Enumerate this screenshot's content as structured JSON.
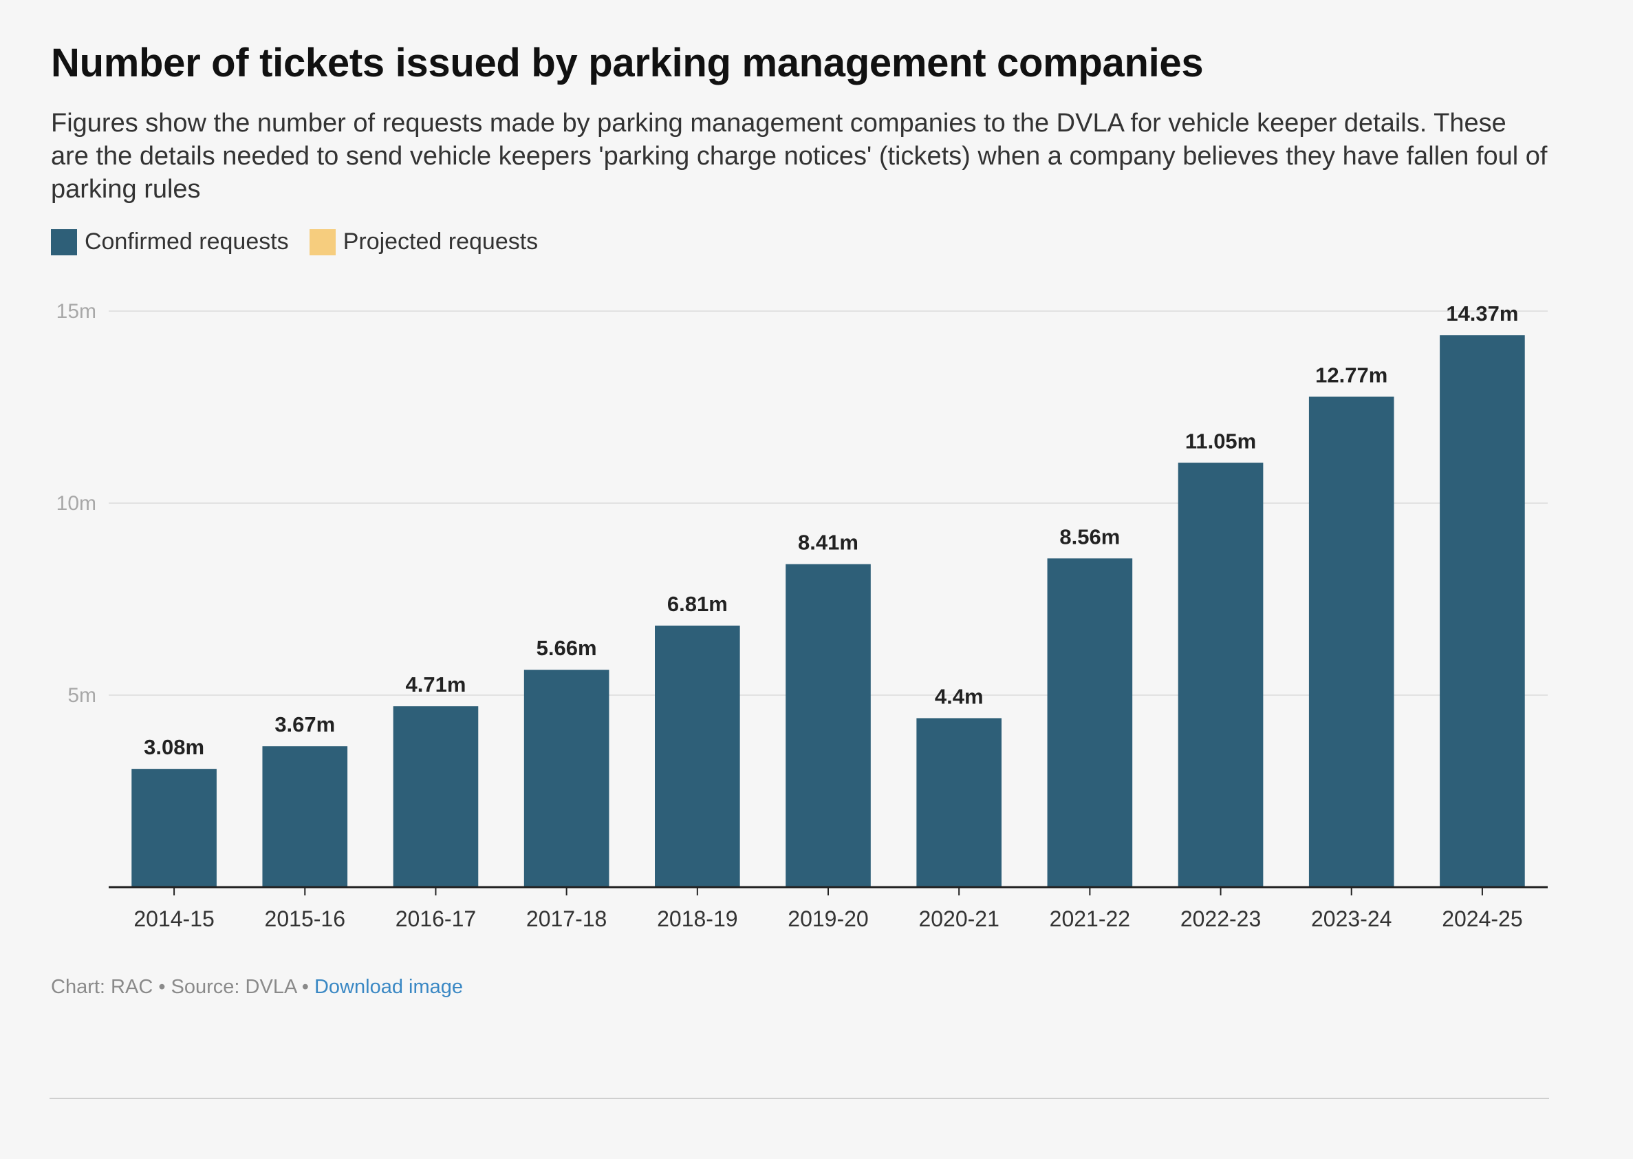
{
  "title": "Number of tickets issued by parking management companies",
  "subtitle": "Figures show the number of requests made by parking management companies to the DVLA for vehicle keeper details. These are the details needed to send vehicle keepers 'parking charge notices' (tickets) when a company believes they have fallen foul of parking rules",
  "legend": {
    "items": [
      {
        "label": "Confirmed requests",
        "color": "#2e5f78"
      },
      {
        "label": "Projected requests",
        "color": "#f6cd7e"
      }
    ]
  },
  "footer": {
    "credit": "Chart: RAC",
    "separator": " • ",
    "source": "Source: DVLA",
    "download_label": "Download image"
  },
  "chart_data": {
    "type": "bar",
    "categories": [
      "2014-15",
      "2015-16",
      "2016-17",
      "2017-18",
      "2018-19",
      "2019-20",
      "2020-21",
      "2021-22",
      "2022-23",
      "2023-24",
      "2024-25"
    ],
    "values": [
      3.08,
      3.67,
      4.71,
      5.66,
      6.81,
      8.41,
      4.4,
      8.56,
      11.05,
      12.77,
      14.37
    ],
    "data_labels": [
      "3.08m",
      "3.67m",
      "4.71m",
      "5.66m",
      "6.81m",
      "8.41m",
      "4.4m",
      "8.56m",
      "11.05m",
      "12.77m",
      "14.37m"
    ],
    "ylim": [
      0,
      15
    ],
    "yticks": [
      5,
      10,
      15
    ],
    "ytick_labels": [
      "5m",
      "10m",
      "15m"
    ],
    "grid": true,
    "bar_color": "#2e5f78",
    "legend_position": "top-left"
  }
}
